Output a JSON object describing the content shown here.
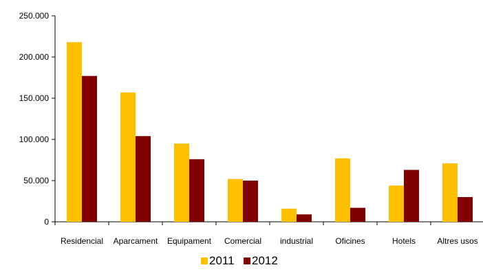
{
  "chart_data": {
    "type": "bar",
    "categories": [
      "Residencial",
      "Aparcament",
      "Equipament",
      "Comercial",
      "industrial",
      "Oficines",
      "Hotels",
      "Altres usos"
    ],
    "series": [
      {
        "name": "2011",
        "color": "#FFC000",
        "values": [
          218000,
          157000,
          95000,
          52000,
          16000,
          77000,
          44000,
          71000
        ]
      },
      {
        "name": "2012",
        "color": "#800000",
        "values": [
          177000,
          104000,
          76000,
          50000,
          9000,
          17000,
          63000,
          30000
        ]
      }
    ],
    "ylim": [
      0,
      250000
    ],
    "yticks": [
      {
        "value": 0,
        "label": "0"
      },
      {
        "value": 50000,
        "label": "50.000"
      },
      {
        "value": 100000,
        "label": "100.000"
      },
      {
        "value": 150000,
        "label": "150.000"
      },
      {
        "value": 200000,
        "label": "200.000"
      },
      {
        "value": 250000,
        "label": "250.000"
      }
    ],
    "title": "",
    "xlabel": "",
    "ylabel": "",
    "grid": false,
    "legend_position": "bottom"
  }
}
